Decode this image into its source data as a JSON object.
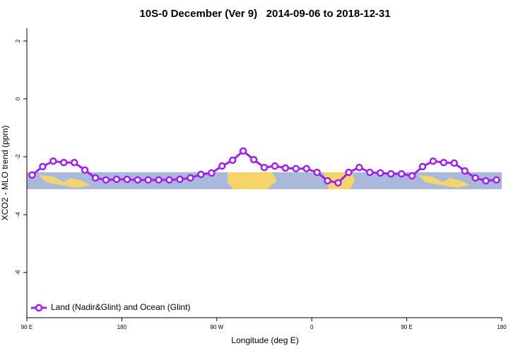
{
  "chart_data": {
    "type": "line",
    "title": "10S-0 December (Ver 9)   2014-09-06 to 2018-12-31",
    "x_label": "Longitude (deg E)",
    "y_label": "XCO2 - MLO trend (ppm)",
    "x": [
      95,
      105,
      115,
      125,
      135,
      145,
      155,
      165,
      175,
      185,
      195,
      205,
      215,
      225,
      235,
      245,
      255,
      265,
      275,
      285,
      295,
      305,
      315,
      325,
      335,
      345,
      355,
      365,
      375,
      385,
      395,
      405,
      415,
      425,
      435,
      445,
      455,
      465,
      475,
      485,
      495,
      505,
      515,
      525,
      535
    ],
    "series": [
      {
        "name": "Land (Nadir&Glint) and Ocean (Glint)",
        "color": "#a020f0",
        "values": [
          -2.63,
          -2.34,
          -2.15,
          -2.2,
          -2.2,
          -2.46,
          -2.73,
          -2.8,
          -2.78,
          -2.78,
          -2.8,
          -2.8,
          -2.8,
          -2.8,
          -2.78,
          -2.73,
          -2.61,
          -2.56,
          -2.32,
          -2.12,
          -1.8,
          -2.1,
          -2.37,
          -2.32,
          -2.39,
          -2.41,
          -2.41,
          -2.54,
          -2.83,
          -2.9,
          -2.54,
          -2.37,
          -2.54,
          -2.56,
          -2.59,
          -2.59,
          -2.66,
          -2.34,
          -2.15,
          -2.2,
          -2.22,
          -2.49,
          -2.73,
          -2.83,
          -2.8
        ]
      }
    ],
    "xlim": [
      90,
      540
    ],
    "xticks": [
      {
        "value": 90,
        "label": "90 E"
      },
      180,
      {
        "value": 270,
        "label": "90 W"
      },
      {
        "value": 360,
        "label": "0"
      },
      {
        "value": 450,
        "label": "90 E"
      },
      {
        "value": 540,
        "label": "180"
      }
    ],
    "ylim": [
      -7.56,
      2.44
    ],
    "yticks": [
      -6,
      -4,
      -2,
      0,
      2
    ],
    "legend": "bottom-left"
  }
}
